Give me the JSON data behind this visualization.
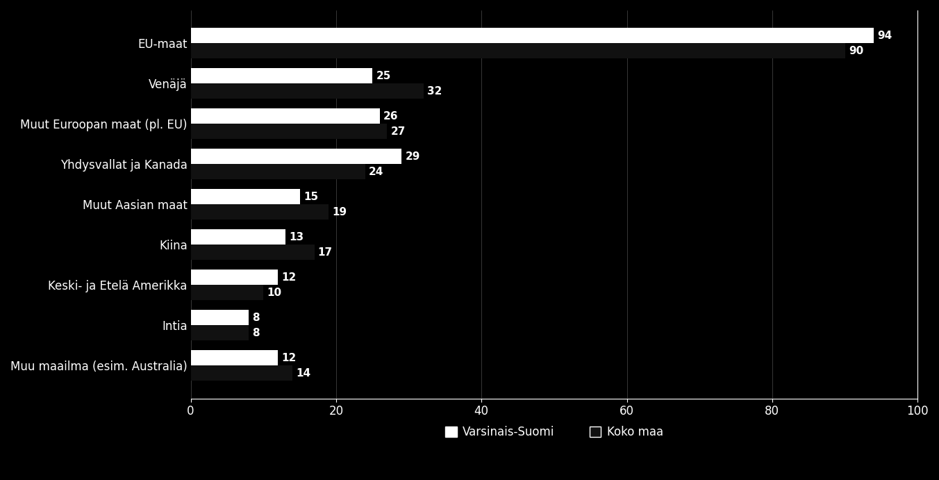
{
  "categories": [
    "EU-maat",
    "Venäjä",
    "Muut Euroopan maat (pl. EU)",
    "Yhdysvallat ja Kanada",
    "Muut Aasian maat",
    "Kiina",
    "Keski- ja Etelä Amerikka",
    "Intia",
    "Muu maailma (esim. Australia)"
  ],
  "varsinais_suomi": [
    94,
    25,
    26,
    29,
    15,
    13,
    12,
    8,
    12
  ],
  "koko_maa": [
    90,
    32,
    27,
    24,
    19,
    17,
    10,
    8,
    14
  ],
  "background_color": "#000000",
  "plot_bg_color": "#000000",
  "bar_color_varsinais": "#ffffff",
  "bar_color_koko": "#111111",
  "text_color": "#ffffff",
  "axis_color": "#ffffff",
  "grid_color": "#ffffff",
  "xlim": [
    0,
    100
  ],
  "xticks": [
    0,
    20,
    40,
    60,
    80,
    100
  ],
  "legend_varsinais": "Varsinais-Suomi",
  "legend_koko": "Koko maa",
  "bar_height": 0.38,
  "fontsize_labels": 12,
  "fontsize_values": 11,
  "fontsize_ticks": 12,
  "fontsize_legend": 12
}
